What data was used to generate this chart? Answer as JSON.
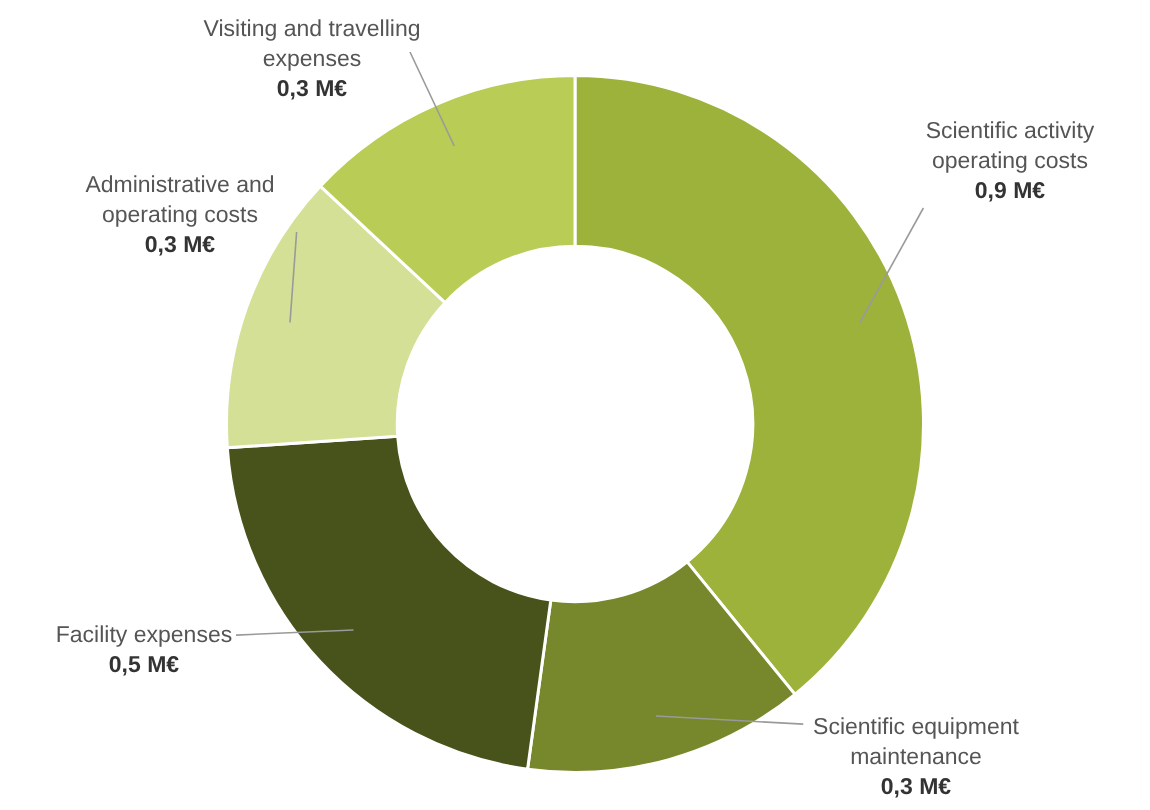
{
  "chart_data": {
    "type": "donut",
    "categories": [
      "Scientific activity operating costs",
      "Scientific equipment maintenance",
      "Facility expenses",
      "Administrative and operating costs",
      "Visiting and travelling expenses"
    ],
    "values": [
      0.9,
      0.3,
      0.5,
      0.3,
      0.3
    ],
    "value_labels": [
      "0,9 M€",
      "0,3 M€",
      "0,5 M€",
      "0,3 M€",
      "0,3 M€"
    ],
    "colors": [
      "#9db23a",
      "#77872b",
      "#48531c",
      "#d4e095",
      "#b9cc55"
    ]
  }
}
